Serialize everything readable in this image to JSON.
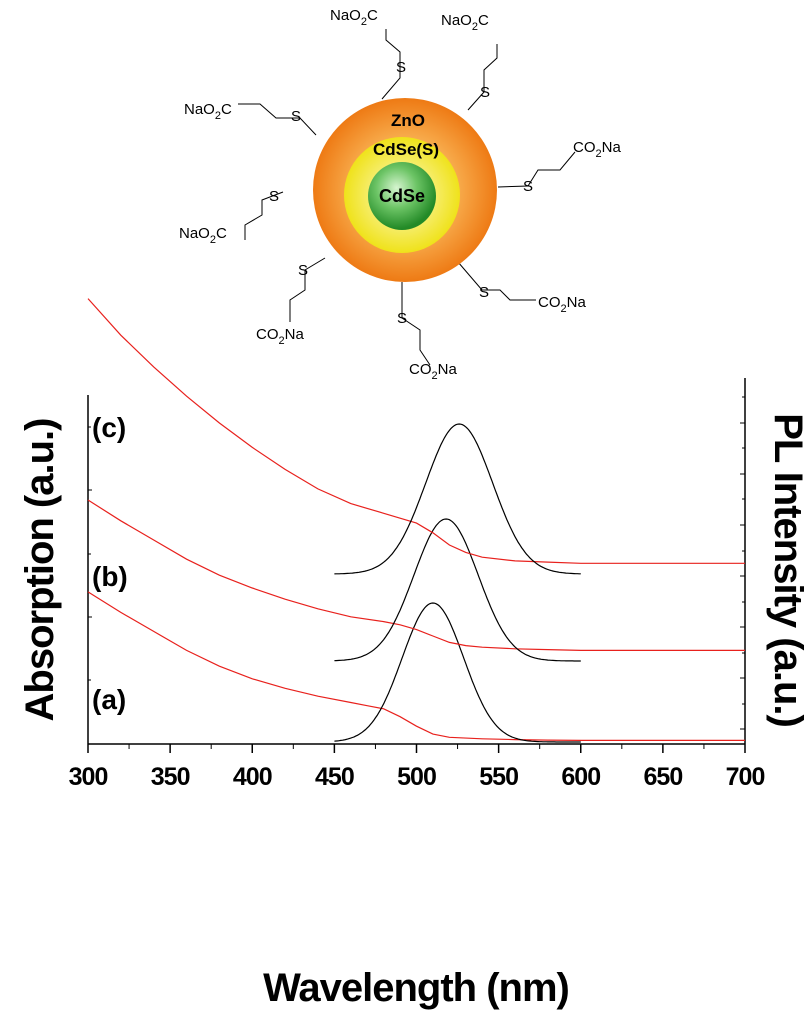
{
  "chart_data": {
    "type": "line",
    "xlabel": "Wavelength (nm)",
    "ylabel_left": "Absorption (a.u.)",
    "ylabel_right": "PL Intensity (a.u.)",
    "xlim": [
      300,
      700
    ],
    "xticks": [
      300,
      350,
      400,
      450,
      500,
      550,
      600,
      650,
      700
    ],
    "grid": false,
    "panels": [
      {
        "label": "(a)",
        "absorption": {
          "x": [
            300,
            320,
            340,
            360,
            380,
            400,
            420,
            440,
            460,
            470,
            480,
            490,
            500,
            510,
            520,
            540,
            560,
            580,
            600,
            650,
            700
          ],
          "y": [
            0.95,
            0.82,
            0.7,
            0.58,
            0.48,
            0.4,
            0.34,
            0.29,
            0.25,
            0.23,
            0.21,
            0.16,
            0.1,
            0.05,
            0.03,
            0.02,
            0.015,
            0.012,
            0.01,
            0.01,
            0.01
          ]
        },
        "pl": {
          "peak_nm": 510,
          "fwhm_nm": 44,
          "range_nm": [
            450,
            600
          ]
        }
      },
      {
        "label": "(b)",
        "absorption": {
          "x": [
            300,
            320,
            340,
            360,
            380,
            400,
            420,
            440,
            460,
            480,
            490,
            500,
            510,
            520,
            530,
            540,
            560,
            580,
            600,
            650,
            700
          ],
          "y": [
            0.95,
            0.82,
            0.7,
            0.58,
            0.48,
            0.4,
            0.33,
            0.27,
            0.22,
            0.19,
            0.17,
            0.14,
            0.1,
            0.06,
            0.04,
            0.03,
            0.02,
            0.015,
            0.01,
            0.01,
            0.01
          ]
        },
        "pl": {
          "peak_nm": 518,
          "fwhm_nm": 46,
          "range_nm": [
            450,
            600
          ]
        }
      },
      {
        "label": "(c)",
        "absorption": {
          "x": [
            300,
            320,
            340,
            360,
            380,
            400,
            420,
            440,
            460,
            480,
            490,
            500,
            510,
            520,
            530,
            540,
            560,
            580,
            600,
            650,
            700
          ],
          "y": [
            1.1,
            0.95,
            0.82,
            0.7,
            0.59,
            0.49,
            0.4,
            0.32,
            0.26,
            0.22,
            0.2,
            0.18,
            0.14,
            0.09,
            0.06,
            0.04,
            0.025,
            0.02,
            0.015,
            0.015,
            0.015
          ]
        },
        "pl": {
          "peak_nm": 526,
          "fwhm_nm": 48,
          "range_nm": [
            450,
            600
          ]
        }
      }
    ],
    "colors": {
      "absorption": "#e8211d",
      "pl": "#000000"
    }
  },
  "diagram": {
    "core_label": "CdSe",
    "inner_shell_label": "CdSe(S)",
    "outer_shell_label": "ZnO",
    "ligands": [
      {
        "sulfur": "S",
        "end": "NaO",
        "sub": "2",
        "tail": "C"
      },
      {
        "sulfur": "S",
        "end": "NaO",
        "sub": "2",
        "tail": "C"
      },
      {
        "sulfur": "S",
        "end": "NaO",
        "sub": "2",
        "tail": "C"
      },
      {
        "sulfur": "S",
        "end": "NaO",
        "sub": "2",
        "tail": "C"
      },
      {
        "sulfur": "S",
        "end": "CO",
        "sub": "2",
        "tail": "Na"
      },
      {
        "sulfur": "S",
        "end": "CO",
        "sub": "2",
        "tail": "Na"
      },
      {
        "sulfur": "S",
        "end": "CO",
        "sub": "2",
        "tail": "Na"
      },
      {
        "sulfur": "S",
        "end": "CO",
        "sub": "2",
        "tail": "Na"
      }
    ],
    "colors": {
      "outer": "#f28a1c",
      "inner": "#f2e41a",
      "core": "#2e9a2e"
    }
  }
}
